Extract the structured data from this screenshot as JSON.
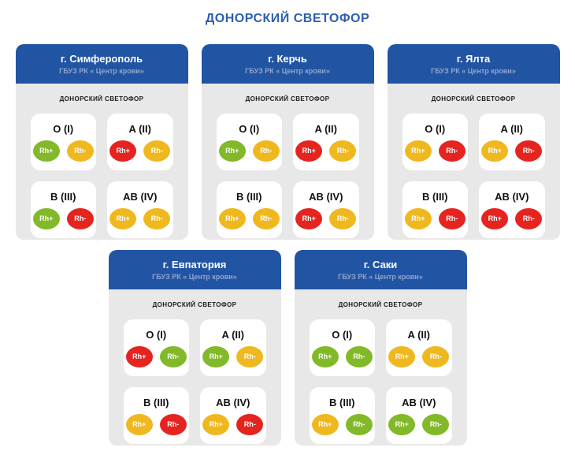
{
  "page": {
    "title": "ДОНОРСКИЙ СВЕТОФОР"
  },
  "colors": {
    "green": "#82b928",
    "yellow": "#f0b81f",
    "red": "#e52420",
    "header_blue": "#2254a4",
    "title_blue": "#2b5fae",
    "card_gray": "#e8e8e8"
  },
  "cards": [
    {
      "city": "г. Симферополь",
      "org": "ГБУЗ РК « Центр крови»",
      "label": "ДОНОРСКИЙ СВЕТОФОР",
      "groups": [
        {
          "name": "O (I)",
          "rh_plus": {
            "label": "Rh+",
            "status": "green"
          },
          "rh_minus": {
            "label": "Rh-",
            "status": "yellow"
          }
        },
        {
          "name": "A (II)",
          "rh_plus": {
            "label": "Rh+",
            "status": "red"
          },
          "rh_minus": {
            "label": "Rh-",
            "status": "yellow"
          }
        },
        {
          "name": "B (III)",
          "rh_plus": {
            "label": "Rh+",
            "status": "green"
          },
          "rh_minus": {
            "label": "Rh-",
            "status": "red"
          }
        },
        {
          "name": "AB (IV)",
          "rh_plus": {
            "label": "Rh+",
            "status": "yellow"
          },
          "rh_minus": {
            "label": "Rh-",
            "status": "yellow"
          }
        }
      ]
    },
    {
      "city": "г. Керчь",
      "org": "ГБУЗ РК « Центр крови»",
      "label": "ДОНОРСКИЙ СВЕТОФОР",
      "groups": [
        {
          "name": "O (I)",
          "rh_plus": {
            "label": "Rh+",
            "status": "green"
          },
          "rh_minus": {
            "label": "Rh-",
            "status": "yellow"
          }
        },
        {
          "name": "A (II)",
          "rh_plus": {
            "label": "Rh+",
            "status": "red"
          },
          "rh_minus": {
            "label": "Rh-",
            "status": "yellow"
          }
        },
        {
          "name": "B (III)",
          "rh_plus": {
            "label": "Rh+",
            "status": "yellow"
          },
          "rh_minus": {
            "label": "Rh-",
            "status": "yellow"
          }
        },
        {
          "name": "AB (IV)",
          "rh_plus": {
            "label": "Rh+",
            "status": "red"
          },
          "rh_minus": {
            "label": "Rh-",
            "status": "yellow"
          }
        }
      ]
    },
    {
      "city": "г. Ялта",
      "org": "ГБУЗ РК « Центр крови»",
      "label": "ДОНОРСКИЙ СВЕТОФОР",
      "groups": [
        {
          "name": "O (I)",
          "rh_plus": {
            "label": "Rh+",
            "status": "yellow"
          },
          "rh_minus": {
            "label": "Rh-",
            "status": "red"
          }
        },
        {
          "name": "A (II)",
          "rh_plus": {
            "label": "Rh+",
            "status": "yellow"
          },
          "rh_minus": {
            "label": "Rh-",
            "status": "red"
          }
        },
        {
          "name": "B (III)",
          "rh_plus": {
            "label": "Rh+",
            "status": "yellow"
          },
          "rh_minus": {
            "label": "Rh-",
            "status": "red"
          }
        },
        {
          "name": "AB (IV)",
          "rh_plus": {
            "label": "Rh+",
            "status": "red"
          },
          "rh_minus": {
            "label": "Rh-",
            "status": "red"
          }
        }
      ]
    },
    {
      "city": "г. Евпатория",
      "org": "ГБУЗ РК « Центр крови»",
      "label": "ДОНОРСКИЙ СВЕТОФОР",
      "groups": [
        {
          "name": "O (I)",
          "rh_plus": {
            "label": "Rh+",
            "status": "red"
          },
          "rh_minus": {
            "label": "Rh-",
            "status": "green"
          }
        },
        {
          "name": "A (II)",
          "rh_plus": {
            "label": "Rh+",
            "status": "green"
          },
          "rh_minus": {
            "label": "Rh-",
            "status": "yellow"
          }
        },
        {
          "name": "B (III)",
          "rh_plus": {
            "label": "Rh+",
            "status": "yellow"
          },
          "rh_minus": {
            "label": "Rh-",
            "status": "red"
          }
        },
        {
          "name": "AB (IV)",
          "rh_plus": {
            "label": "Rh+",
            "status": "yellow"
          },
          "rh_minus": {
            "label": "Rh-",
            "status": "red"
          }
        }
      ]
    },
    {
      "city": "г. Саки",
      "org": "ГБУЗ РК « Центр крови»",
      "label": "ДОНОРСКИЙ СВЕТОФОР",
      "groups": [
        {
          "name": "O (I)",
          "rh_plus": {
            "label": "Rh+",
            "status": "green"
          },
          "rh_minus": {
            "label": "Rh-",
            "status": "green"
          }
        },
        {
          "name": "A (II)",
          "rh_plus": {
            "label": "Rh+",
            "status": "yellow"
          },
          "rh_minus": {
            "label": "Rh-",
            "status": "yellow"
          }
        },
        {
          "name": "B (III)",
          "rh_plus": {
            "label": "Rh+",
            "status": "yellow"
          },
          "rh_minus": {
            "label": "Rh-",
            "status": "green"
          }
        },
        {
          "name": "AB (IV)",
          "rh_plus": {
            "label": "Rh+",
            "status": "green"
          },
          "rh_minus": {
            "label": "Rh-",
            "status": "green"
          }
        }
      ]
    }
  ]
}
